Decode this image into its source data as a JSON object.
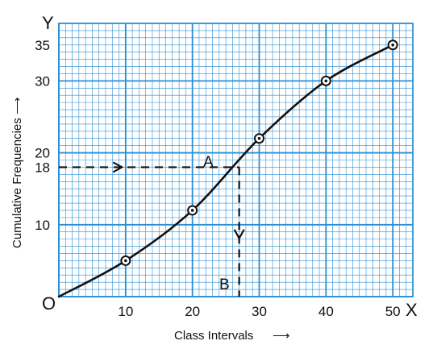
{
  "chart_data": {
    "type": "line",
    "title": "",
    "xlabel": "Class Intervals",
    "ylabel": "Cumulative Frequencies",
    "xlabel_arrow": "⟶",
    "ylabel_arrow": "⟶",
    "x_axis_letter": "X",
    "y_axis_letter": "Y",
    "origin_label": "O",
    "xlim": [
      0,
      53
    ],
    "ylim": [
      0,
      38
    ],
    "x_ticks": [
      "10",
      "20",
      "30",
      "40",
      "50"
    ],
    "y_ticks": [
      "10",
      "18",
      "20",
      "30",
      "35"
    ],
    "grid": true,
    "colors": {
      "grid": "#2b8fd6",
      "background": "#ffffff",
      "curve": "#111111"
    },
    "series": [
      {
        "x": [
          0,
          10,
          20,
          30,
          40,
          50
        ],
        "y": [
          0,
          5,
          12,
          22,
          30,
          35
        ]
      }
    ],
    "annotations": [
      {
        "text": "A",
        "x": 27,
        "y": 18
      },
      {
        "text": "B",
        "x": 27,
        "y": 0
      }
    ],
    "median_x": 27,
    "median_y": 18
  }
}
